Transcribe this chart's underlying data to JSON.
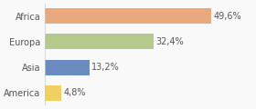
{
  "categories": [
    "Africa",
    "Europa",
    "Asia",
    "America"
  ],
  "values": [
    49.6,
    32.4,
    13.2,
    4.8
  ],
  "labels": [
    "49,6%",
    "32,4%",
    "13,2%",
    "4,8%"
  ],
  "bar_colors": [
    "#e8a97e",
    "#b5c98a",
    "#6b8cbf",
    "#f0d060"
  ],
  "background_color": "#f9f9f9",
  "xlim": [
    0,
    62
  ],
  "label_fontsize": 7,
  "tick_fontsize": 7
}
